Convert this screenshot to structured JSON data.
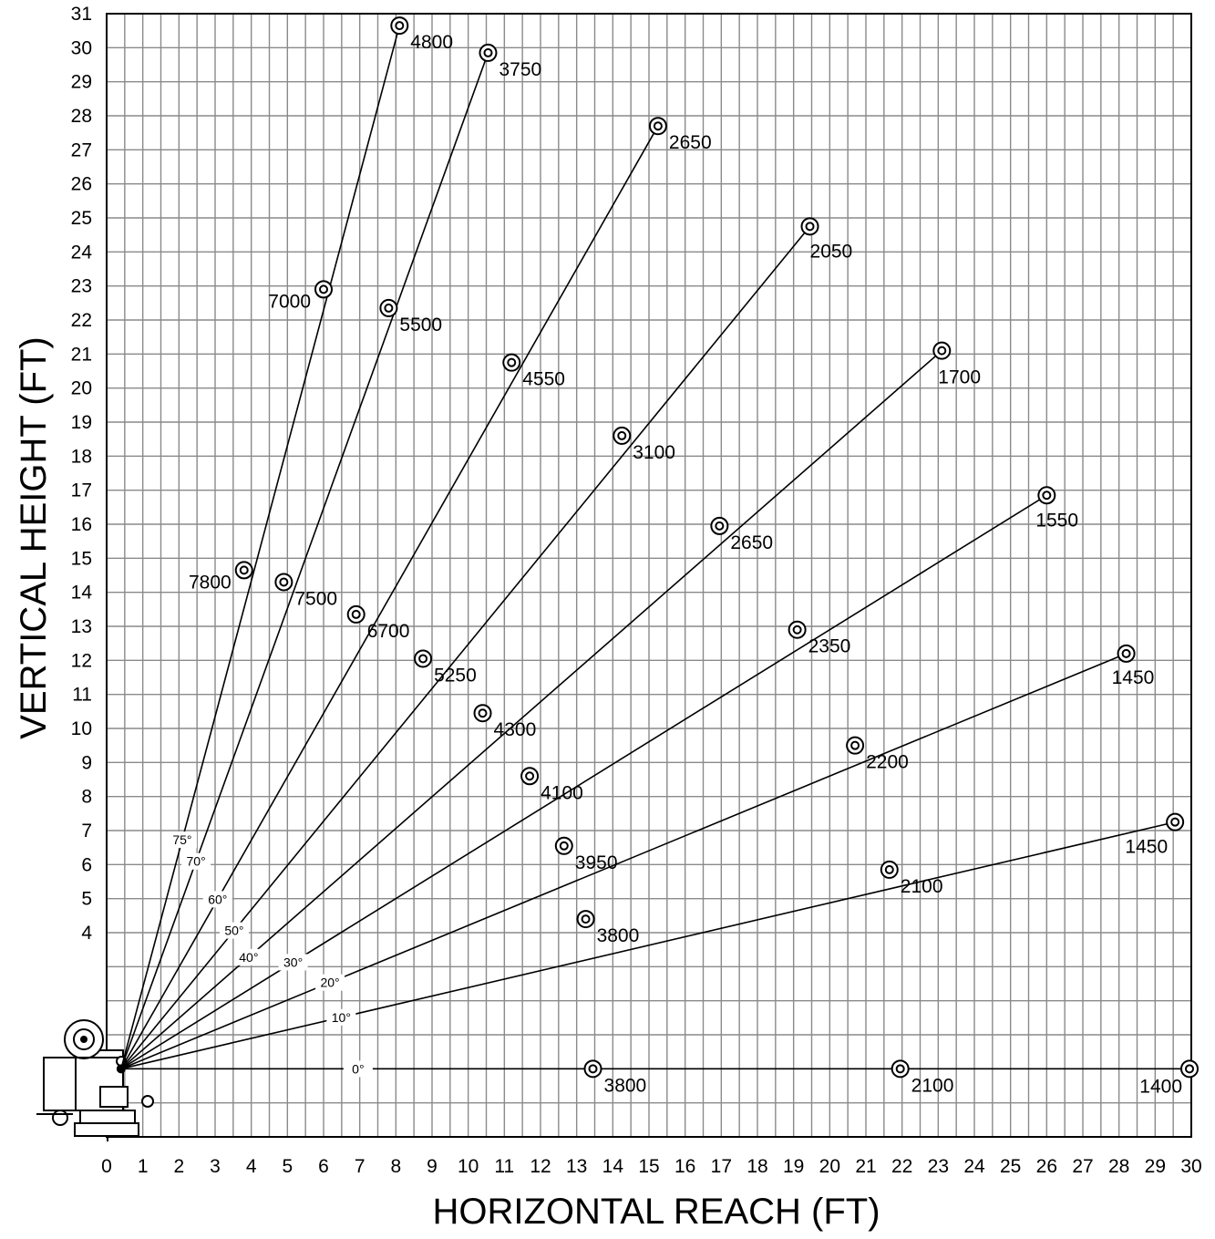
{
  "chart_data": {
    "type": "line",
    "xlabel": "HORIZONTAL REACH (FT)",
    "ylabel": "VERTICAL HEIGHT (FT)",
    "xlim": [
      0,
      30
    ],
    "ylim": [
      -2,
      31
    ],
    "grid": true,
    "x_ticks": [
      "0",
      "1",
      "2",
      "3",
      "4",
      "5",
      "6",
      "7",
      "8",
      "9",
      "10",
      "11",
      "12",
      "13",
      "14",
      "15",
      "16",
      "17",
      "18",
      "19",
      "20",
      "21",
      "22",
      "23",
      "24",
      "25",
      "26",
      "27",
      "28",
      "29",
      "30"
    ],
    "y_ticks": [
      "4",
      "5",
      "6",
      "7",
      "8",
      "9",
      "10",
      "11",
      "12",
      "13",
      "14",
      "15",
      "16",
      "17",
      "18",
      "19",
      "20",
      "21",
      "22",
      "23",
      "24",
      "25",
      "26",
      "27",
      "28",
      "29",
      "30",
      "31"
    ],
    "origin": {
      "x": 0.4,
      "y": 0
    },
    "series": [
      {
        "name": "75°",
        "points": [
          {
            "x": 3.8,
            "y": 14.65,
            "label": "7800"
          },
          {
            "x": 6.0,
            "y": 22.9,
            "label": "7000"
          },
          {
            "x": 8.1,
            "y": 30.65,
            "label": "4800"
          }
        ]
      },
      {
        "name": "70°",
        "points": [
          {
            "x": 4.9,
            "y": 14.3,
            "label": "7500"
          },
          {
            "x": 7.8,
            "y": 22.35,
            "label": "5500"
          },
          {
            "x": 10.55,
            "y": 29.85,
            "label": "3750"
          }
        ]
      },
      {
        "name": "60°",
        "points": [
          {
            "x": 6.9,
            "y": 13.35,
            "label": "6700"
          },
          {
            "x": 11.2,
            "y": 20.75,
            "label": "4550"
          },
          {
            "x": 15.25,
            "y": 27.7,
            "label": "2650"
          }
        ]
      },
      {
        "name": "50°",
        "points": [
          {
            "x": 8.75,
            "y": 12.05,
            "label": "5250"
          },
          {
            "x": 14.25,
            "y": 18.6,
            "label": "3100"
          },
          {
            "x": 19.45,
            "y": 24.75,
            "label": "2050"
          }
        ]
      },
      {
        "name": "40°",
        "points": [
          {
            "x": 10.4,
            "y": 10.45,
            "label": "4300"
          },
          {
            "x": 16.95,
            "y": 15.95,
            "label": "2650"
          },
          {
            "x": 23.1,
            "y": 21.1,
            "label": "1700"
          }
        ]
      },
      {
        "name": "30°",
        "points": [
          {
            "x": 11.7,
            "y": 8.6,
            "label": "4100"
          },
          {
            "x": 19.1,
            "y": 12.9,
            "label": "2350"
          },
          {
            "x": 26.0,
            "y": 16.85,
            "label": "1550"
          }
        ]
      },
      {
        "name": "20°",
        "points": [
          {
            "x": 12.65,
            "y": 6.55,
            "label": "3950"
          },
          {
            "x": 20.7,
            "y": 9.5,
            "label": "2200"
          },
          {
            "x": 28.2,
            "y": 12.2,
            "label": "1450"
          }
        ]
      },
      {
        "name": "10°",
        "points": [
          {
            "x": 13.25,
            "y": 4.4,
            "label": "3800"
          },
          {
            "x": 21.65,
            "y": 5.85,
            "label": "2100"
          },
          {
            "x": 29.55,
            "y": 7.25,
            "label": "1450"
          }
        ]
      },
      {
        "name": "0°",
        "points": [
          {
            "x": 13.45,
            "y": 0,
            "label": "3800"
          },
          {
            "x": 21.95,
            "y": 0,
            "label": "2100"
          },
          {
            "x": 29.95,
            "y": 0,
            "label": "1400"
          }
        ]
      }
    ]
  }
}
